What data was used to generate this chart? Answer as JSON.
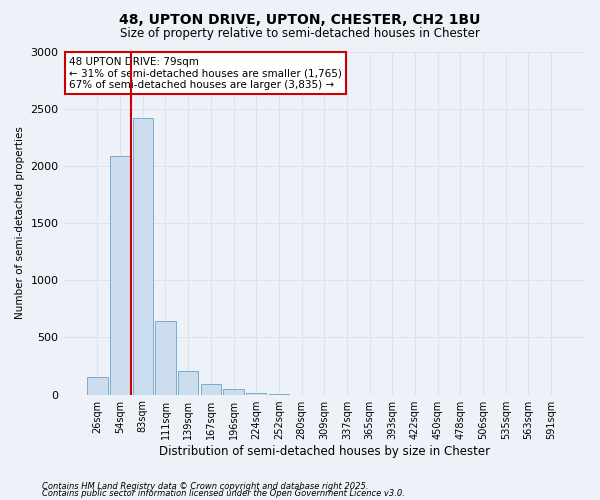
{
  "title1": "48, UPTON DRIVE, UPTON, CHESTER, CH2 1BU",
  "title2": "Size of property relative to semi-detached houses in Chester",
  "xlabel": "Distribution of semi-detached houses by size in Chester",
  "ylabel": "Number of semi-detached properties",
  "bar_color": "#ccddf0",
  "bar_edge_color": "#7aabcf",
  "grid_color": "#d8e4f0",
  "background_color": "#eef2f8",
  "categories": [
    "26sqm",
    "54sqm",
    "83sqm",
    "111sqm",
    "139sqm",
    "167sqm",
    "196sqm",
    "224sqm",
    "252sqm",
    "280sqm",
    "309sqm",
    "337sqm",
    "365sqm",
    "393sqm",
    "422sqm",
    "450sqm",
    "478sqm",
    "506sqm",
    "535sqm",
    "563sqm",
    "591sqm"
  ],
  "values": [
    155,
    2090,
    2420,
    640,
    210,
    95,
    45,
    18,
    8,
    0,
    0,
    0,
    0,
    0,
    0,
    0,
    0,
    0,
    0,
    0,
    0
  ],
  "ylim": [
    0,
    3000
  ],
  "yticks": [
    0,
    500,
    1000,
    1500,
    2000,
    2500,
    3000
  ],
  "property_bin_index": 1,
  "vertical_line_color": "#cc0000",
  "annotation_text": "48 UPTON DRIVE: 79sqm\n← 31% of semi-detached houses are smaller (1,765)\n67% of semi-detached houses are larger (3,835) →",
  "annotation_box_color": "#ffffff",
  "annotation_box_edge": "#cc0000",
  "footnote1": "Contains HM Land Registry data © Crown copyright and database right 2025.",
  "footnote2": "Contains public sector information licensed under the Open Government Licence v3.0."
}
